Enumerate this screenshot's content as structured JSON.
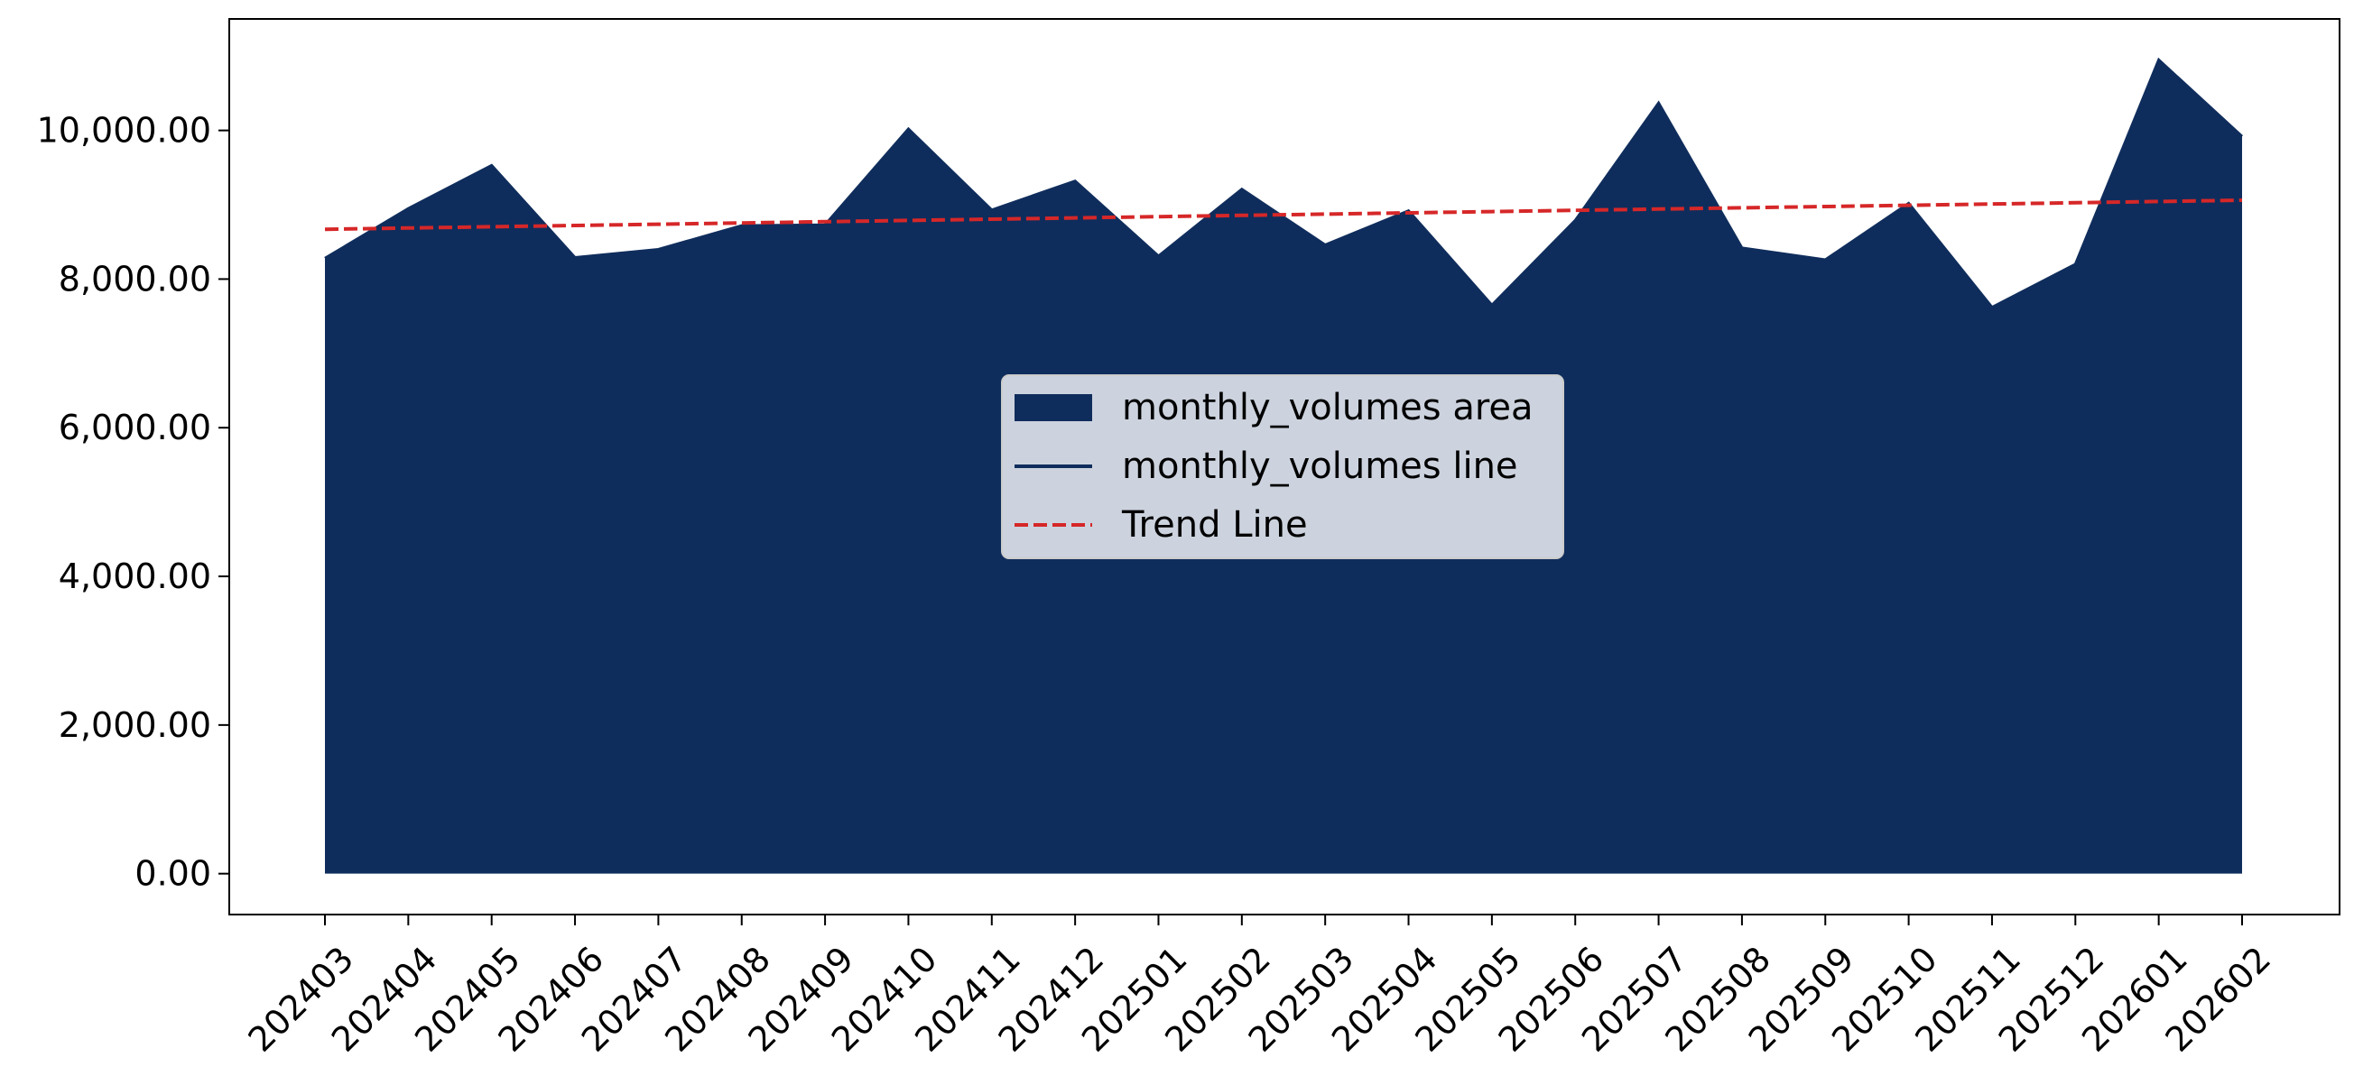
{
  "chart_data": {
    "type": "area",
    "title": "",
    "xlabel": "",
    "ylabel": "",
    "categories": [
      "202403",
      "202404",
      "202405",
      "202406",
      "202407",
      "202408",
      "202409",
      "202410",
      "202411",
      "202412",
      "202501",
      "202502",
      "202503",
      "202504",
      "202505",
      "202506",
      "202507",
      "202508",
      "202509",
      "202510",
      "202511",
      "202512",
      "202601",
      "202602"
    ],
    "series": [
      {
        "name": "monthly_volumes area",
        "kind": "area",
        "color": "#0f2d5c",
        "values": [
          8280,
          8950,
          9530,
          8290,
          8400,
          8720,
          8730,
          10020,
          8930,
          9320,
          8310,
          9210,
          8460,
          8920,
          7650,
          8790,
          10370,
          8420,
          8260,
          9020,
          7620,
          8200,
          10950,
          9920
        ]
      },
      {
        "name": "monthly_volumes line",
        "kind": "line",
        "color": "#0f2d5c",
        "values": [
          8280,
          8950,
          9530,
          8290,
          8400,
          8720,
          8730,
          10020,
          8930,
          9320,
          8310,
          9210,
          8460,
          8920,
          7650,
          8790,
          10370,
          8420,
          8260,
          9020,
          7620,
          8200,
          10950,
          9920
        ]
      },
      {
        "name": "Trend Line",
        "kind": "dashed-line",
        "color": "#d62728",
        "values": [
          8670,
          8687,
          8704,
          8721,
          8738,
          8755,
          8772,
          8789,
          8806,
          8823,
          8840,
          8857,
          8874,
          8891,
          8908,
          8925,
          8942,
          8959,
          8976,
          8993,
          9010,
          9027,
          9044,
          9061
        ]
      }
    ],
    "yticks": [
      0,
      2000,
      4000,
      6000,
      8000,
      10000
    ],
    "ytick_labels": [
      "0.00",
      "2,000.00",
      "4,000.00",
      "6,000.00",
      "8,000.00",
      "10,000.00"
    ],
    "ylim": [
      -550,
      11500
    ],
    "grid": false,
    "legend_position": "center",
    "legend": [
      {
        "label": "monthly_volumes area",
        "symbol": "patch",
        "color": "#0f2d5c"
      },
      {
        "label": "monthly_volumes line",
        "symbol": "line",
        "color": "#0f2d5c"
      },
      {
        "label": "Trend Line",
        "symbol": "dashed-line",
        "color": "#d62728"
      }
    ]
  }
}
